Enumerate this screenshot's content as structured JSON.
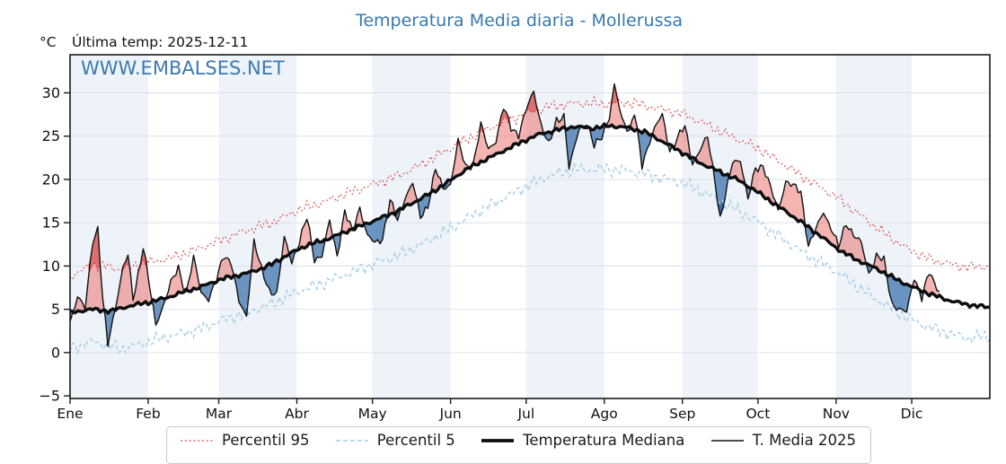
{
  "header": {
    "title": "Temperatura Media diaria - Mollerussa",
    "y_unit": "°C",
    "last_temp": "Última temp: 2025-12-11",
    "watermark": "WWW.EMBALSES.NET"
  },
  "legend": {
    "items": [
      {
        "label": "Percentil 95",
        "series": "p95"
      },
      {
        "label": "Percentil 5",
        "series": "p5"
      },
      {
        "label": "Temperatura Mediana",
        "series": "median"
      },
      {
        "label": "T. Media 2025",
        "series": "t2025"
      }
    ]
  },
  "colors": {
    "title_blue": "#3778ae",
    "watermark_blue": "#3a79b2",
    "p95_line": "#e04343",
    "p5_line": "#a5cee6",
    "median_line": "#0d0d0d",
    "t2025_line": "#111111",
    "warm_fill": "rgba(231,76,70,0.42)",
    "warm_fill_strong": "rgba(205,35,35,0.45)",
    "cold_fill": "rgba(54,110,171,0.72)",
    "cold_fill_strong": "rgba(21,70,130,0.5)",
    "month_band": "#eef3f9",
    "gridline": "#dde3ea",
    "axis": "#1a1a1a",
    "text": "#111111"
  },
  "chart_data": {
    "type": "line",
    "title": "Temperatura Media diaria - Mollerussa",
    "ylabel": "°C",
    "xlabel": "",
    "grid": "horizontal",
    "legend_position": "bottom-center",
    "ylim": [
      -5.3,
      34.4
    ],
    "y_ticks": [
      {
        "value": -5,
        "label": "−5"
      },
      {
        "value": 0,
        "label": "0"
      },
      {
        "value": 5,
        "label": "5"
      },
      {
        "value": 10,
        "label": "10"
      },
      {
        "value": 15,
        "label": "15"
      },
      {
        "value": 20,
        "label": "20"
      },
      {
        "value": 25,
        "label": "25"
      },
      {
        "value": 30,
        "label": "30"
      }
    ],
    "x_tick_labels": [
      "Ene",
      "Feb",
      "Mar",
      "Abr",
      "May",
      "Jun",
      "Jul",
      "Ago",
      "Sep",
      "Oct",
      "Nov",
      "Dic"
    ],
    "month_start_days": [
      0,
      31,
      59,
      90,
      120,
      151,
      181,
      212,
      243,
      273,
      304,
      334
    ],
    "days_in_year": 365,
    "last_data_day": 345,
    "series": [
      {
        "name": "Percentil 95",
        "key": "p95",
        "style": "dotted-red",
        "anchors": [
          [
            0,
            8.8
          ],
          [
            10,
            10.2
          ],
          [
            20,
            9.6
          ],
          [
            31,
            10.4
          ],
          [
            40,
            10.9
          ],
          [
            50,
            11.9
          ],
          [
            59,
            12.9
          ],
          [
            70,
            14.1
          ],
          [
            80,
            15.0
          ],
          [
            90,
            16.4
          ],
          [
            100,
            17.3
          ],
          [
            110,
            18.4
          ],
          [
            120,
            19.4
          ],
          [
            130,
            20.4
          ],
          [
            140,
            21.8
          ],
          [
            151,
            23.6
          ],
          [
            160,
            25.0
          ],
          [
            170,
            26.4
          ],
          [
            181,
            27.6
          ],
          [
            190,
            28.4
          ],
          [
            200,
            28.8
          ],
          [
            212,
            28.7
          ],
          [
            222,
            28.9
          ],
          [
            232,
            28.3
          ],
          [
            243,
            27.6
          ],
          [
            252,
            26.4
          ],
          [
            262,
            25.0
          ],
          [
            273,
            23.6
          ],
          [
            283,
            21.8
          ],
          [
            293,
            19.9
          ],
          [
            304,
            18.0
          ],
          [
            313,
            16.0
          ],
          [
            322,
            14.0
          ],
          [
            331,
            12.2
          ],
          [
            340,
            10.9
          ],
          [
            348,
            10.3
          ],
          [
            356,
            9.9
          ],
          [
            365,
            10.0
          ]
        ]
      },
      {
        "name": "Percentil 5",
        "key": "p5",
        "style": "dashed-lightblue",
        "anchors": [
          [
            0,
            0.6
          ],
          [
            10,
            1.3
          ],
          [
            20,
            0.4
          ],
          [
            31,
            1.2
          ],
          [
            40,
            1.9
          ],
          [
            50,
            2.6
          ],
          [
            59,
            3.6
          ],
          [
            70,
            4.6
          ],
          [
            80,
            5.6
          ],
          [
            90,
            7.0
          ],
          [
            100,
            8.0
          ],
          [
            110,
            9.1
          ],
          [
            120,
            10.2
          ],
          [
            130,
            11.2
          ],
          [
            140,
            12.6
          ],
          [
            151,
            14.3
          ],
          [
            160,
            16.0
          ],
          [
            170,
            17.5
          ],
          [
            181,
            19.2
          ],
          [
            190,
            20.4
          ],
          [
            200,
            21.1
          ],
          [
            212,
            21.2
          ],
          [
            222,
            21.0
          ],
          [
            232,
            20.4
          ],
          [
            243,
            19.6
          ],
          [
            252,
            18.4
          ],
          [
            262,
            16.9
          ],
          [
            273,
            15.1
          ],
          [
            283,
            13.1
          ],
          [
            293,
            11.2
          ],
          [
            304,
            9.4
          ],
          [
            313,
            7.5
          ],
          [
            322,
            5.8
          ],
          [
            331,
            4.2
          ],
          [
            340,
            3.0
          ],
          [
            348,
            2.3
          ],
          [
            356,
            1.7
          ],
          [
            365,
            1.9
          ]
        ]
      },
      {
        "name": "Temperatura Mediana",
        "key": "median",
        "style": "solid-thick-black",
        "anchors": [
          [
            0,
            4.6
          ],
          [
            8,
            5.0
          ],
          [
            16,
            4.8
          ],
          [
            24,
            5.4
          ],
          [
            31,
            5.8
          ],
          [
            38,
            6.3
          ],
          [
            45,
            7.0
          ],
          [
            52,
            7.6
          ],
          [
            59,
            8.4
          ],
          [
            66,
            8.9
          ],
          [
            73,
            9.4
          ],
          [
            80,
            10.2
          ],
          [
            87,
            11.4
          ],
          [
            94,
            12.4
          ],
          [
            101,
            13.0
          ],
          [
            108,
            13.8
          ],
          [
            115,
            14.6
          ],
          [
            122,
            15.4
          ],
          [
            129,
            16.2
          ],
          [
            136,
            17.3
          ],
          [
            143,
            18.4
          ],
          [
            151,
            19.9
          ],
          [
            158,
            21.3
          ],
          [
            165,
            22.3
          ],
          [
            172,
            23.3
          ],
          [
            179,
            24.3
          ],
          [
            186,
            25.2
          ],
          [
            193,
            25.7
          ],
          [
            200,
            26.1
          ],
          [
            207,
            25.9
          ],
          [
            214,
            26.2
          ],
          [
            221,
            26.0
          ],
          [
            228,
            25.5
          ],
          [
            235,
            24.4
          ],
          [
            243,
            23.1
          ],
          [
            250,
            21.9
          ],
          [
            257,
            21.0
          ],
          [
            264,
            20.1
          ],
          [
            271,
            18.9
          ],
          [
            278,
            17.5
          ],
          [
            285,
            16.1
          ],
          [
            292,
            14.7
          ],
          [
            299,
            13.2
          ],
          [
            306,
            11.7
          ],
          [
            313,
            10.6
          ],
          [
            320,
            9.7
          ],
          [
            327,
            8.6
          ],
          [
            334,
            7.6
          ],
          [
            341,
            6.8
          ],
          [
            348,
            6.1
          ],
          [
            355,
            5.6
          ],
          [
            365,
            5.2
          ]
        ]
      },
      {
        "name": "T. Media 2025",
        "key": "t2025",
        "style": "solid-thin-black",
        "anchors": [
          [
            0,
            3.6
          ],
          [
            3,
            6.5
          ],
          [
            6,
            5.0
          ],
          [
            9,
            13.0
          ],
          [
            11,
            14.3
          ],
          [
            13,
            6.0
          ],
          [
            15,
            0.9
          ],
          [
            18,
            5.3
          ],
          [
            21,
            9.8
          ],
          [
            23,
            11.2
          ],
          [
            25,
            6.2
          ],
          [
            27,
            9.0
          ],
          [
            29,
            12.3
          ],
          [
            32,
            6.8
          ],
          [
            34,
            3.2
          ],
          [
            37,
            5.5
          ],
          [
            40,
            8.0
          ],
          [
            43,
            9.8
          ],
          [
            46,
            6.8
          ],
          [
            49,
            10.9
          ],
          [
            52,
            7.0
          ],
          [
            55,
            6.2
          ],
          [
            58,
            8.2
          ],
          [
            61,
            11.3
          ],
          [
            64,
            10.4
          ],
          [
            67,
            5.8
          ],
          [
            70,
            4.2
          ],
          [
            73,
            12.9
          ],
          [
            76,
            9.5
          ],
          [
            79,
            7.2
          ],
          [
            82,
            6.8
          ],
          [
            85,
            13.2
          ],
          [
            88,
            10.5
          ],
          [
            91,
            12.8
          ],
          [
            94,
            15.6
          ],
          [
            97,
            10.8
          ],
          [
            100,
            11.2
          ],
          [
            103,
            15.2
          ],
          [
            106,
            11.2
          ],
          [
            109,
            16.3
          ],
          [
            112,
            14.0
          ],
          [
            115,
            16.8
          ],
          [
            118,
            13.5
          ],
          [
            121,
            12.6
          ],
          [
            124,
            13.2
          ],
          [
            127,
            17.6
          ],
          [
            130,
            15.2
          ],
          [
            133,
            18.0
          ],
          [
            136,
            19.6
          ],
          [
            139,
            15.6
          ],
          [
            142,
            17.0
          ],
          [
            145,
            21.2
          ],
          [
            148,
            18.9
          ],
          [
            151,
            19.5
          ],
          [
            154,
            24.4
          ],
          [
            157,
            21.4
          ],
          [
            160,
            21.8
          ],
          [
            163,
            26.3
          ],
          [
            166,
            23.5
          ],
          [
            169,
            24.5
          ],
          [
            172,
            28.3
          ],
          [
            175,
            26.0
          ],
          [
            178,
            25.2
          ],
          [
            181,
            28.0
          ],
          [
            184,
            30.2
          ],
          [
            187,
            26.3
          ],
          [
            190,
            23.9
          ],
          [
            193,
            26.8
          ],
          [
            196,
            27.4
          ],
          [
            198,
            21.2
          ],
          [
            200,
            23.5
          ],
          [
            202,
            25.9
          ],
          [
            205,
            26.6
          ],
          [
            208,
            23.8
          ],
          [
            211,
            25.0
          ],
          [
            214,
            27.2
          ],
          [
            216,
            30.8
          ],
          [
            219,
            27.0
          ],
          [
            222,
            25.6
          ],
          [
            224,
            27.8
          ],
          [
            227,
            21.5
          ],
          [
            230,
            24.5
          ],
          [
            232,
            26.0
          ],
          [
            235,
            27.4
          ],
          [
            238,
            23.3
          ],
          [
            241,
            24.8
          ],
          [
            244,
            26.1
          ],
          [
            247,
            21.9
          ],
          [
            250,
            23.4
          ],
          [
            253,
            24.9
          ],
          [
            256,
            19.8
          ],
          [
            258,
            15.4
          ],
          [
            260,
            18.0
          ],
          [
            263,
            22.1
          ],
          [
            266,
            22.3
          ],
          [
            269,
            17.6
          ],
          [
            272,
            21.3
          ],
          [
            275,
            21.6
          ],
          [
            278,
            19.0
          ],
          [
            281,
            16.4
          ],
          [
            284,
            19.8
          ],
          [
            287,
            19.2
          ],
          [
            290,
            18.6
          ],
          [
            293,
            12.3
          ],
          [
            296,
            14.2
          ],
          [
            299,
            16.3
          ],
          [
            302,
            14.4
          ],
          [
            305,
            12.2
          ],
          [
            308,
            15.0
          ],
          [
            311,
            13.6
          ],
          [
            314,
            12.6
          ],
          [
            317,
            9.1
          ],
          [
            320,
            11.2
          ],
          [
            323,
            10.6
          ],
          [
            326,
            5.8
          ],
          [
            329,
            5.0
          ],
          [
            332,
            4.6
          ],
          [
            335,
            8.8
          ],
          [
            338,
            6.3
          ],
          [
            341,
            9.3
          ],
          [
            343,
            8.0
          ],
          [
            345,
            7.2
          ]
        ]
      }
    ]
  }
}
